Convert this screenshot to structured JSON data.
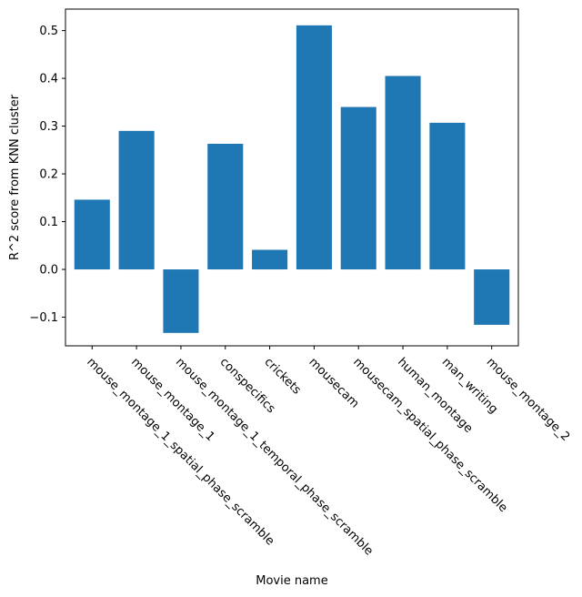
{
  "chart_data": {
    "type": "bar",
    "title": "",
    "xlabel": "Movie name",
    "ylabel": "R^2 score from KNN cluster",
    "categories": [
      "mouse_montage_1_spatial_phase_scramble",
      "mouse_montage_1",
      "mouse_montage_1_temporal_phase_scramble",
      "conspecifics",
      "crickets",
      "mousecam",
      "mousecam_spatial_phase_scramble",
      "human_montage",
      "man_writing",
      "mouse_montage_2"
    ],
    "values": [
      0.146,
      0.29,
      -0.133,
      0.263,
      0.041,
      0.511,
      0.34,
      0.405,
      0.307,
      -0.116
    ],
    "ylim": [
      -0.16,
      0.545
    ],
    "yticks": [
      -0.1,
      0.0,
      0.1,
      0.2,
      0.3,
      0.4,
      0.5
    ],
    "ytick_labels": [
      "−0.1",
      "0.0",
      "0.1",
      "0.2",
      "0.3",
      "0.4",
      "0.5"
    ],
    "bar_color": "#1f77b4",
    "grid": false,
    "legend": "none"
  }
}
